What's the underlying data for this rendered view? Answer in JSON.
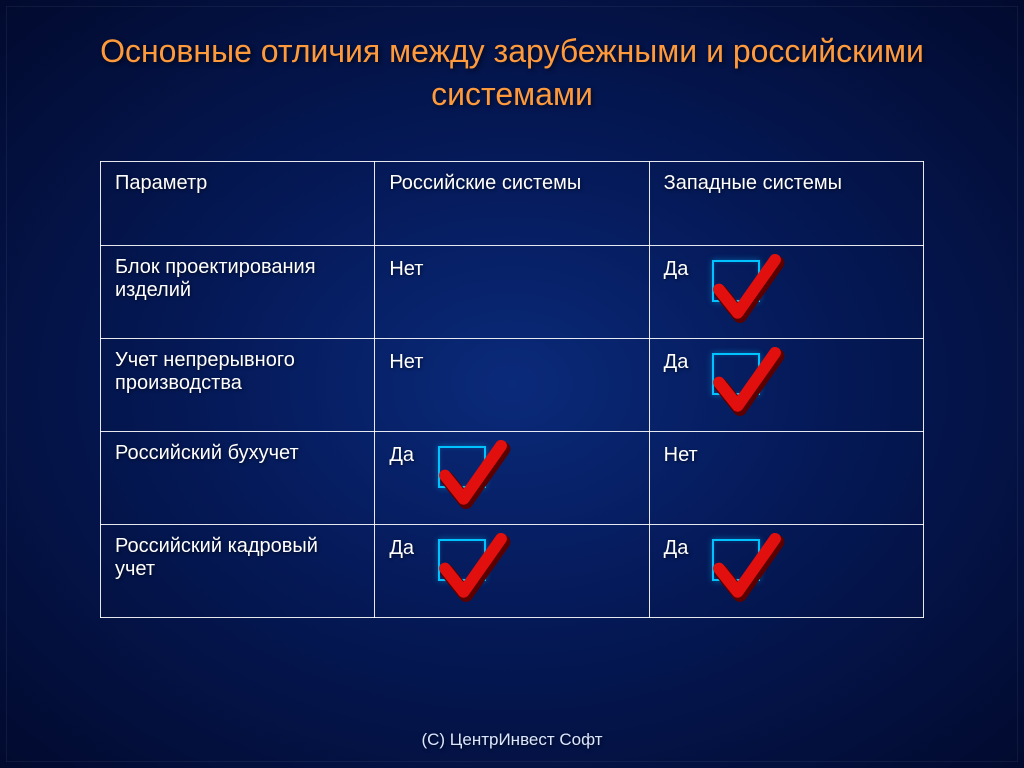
{
  "title_color": "#ff9a3c",
  "title": "Основные отличия между зарубежными и российскими системами",
  "footer": "(С) ЦентрИнвест Софт",
  "checkbox_border_color": "#00c2ff",
  "checkmark_color": "#e20f0f",
  "checkmark_shadow": "#5a0000",
  "text_color": "#ffffff",
  "table": {
    "columns": [
      "Параметр",
      "Российские системы",
      "Западные системы"
    ],
    "rows": [
      {
        "param": "Блок проектирования изделий",
        "ru": {
          "text": "Нет",
          "check": false
        },
        "west": {
          "text": "Да",
          "check": true
        }
      },
      {
        "param": "Учет непрерывного производства",
        "ru": {
          "text": "Нет",
          "check": false
        },
        "west": {
          "text": "Да",
          "check": true
        }
      },
      {
        "param": "Российский бухучет",
        "ru": {
          "text": "Да",
          "check": true
        },
        "west": {
          "text": "Нет",
          "check": false
        }
      },
      {
        "param": "Российский кадровый учет",
        "ru": {
          "text": "Да",
          "check": true
        },
        "west": {
          "text": "Да",
          "check": true
        }
      }
    ]
  }
}
